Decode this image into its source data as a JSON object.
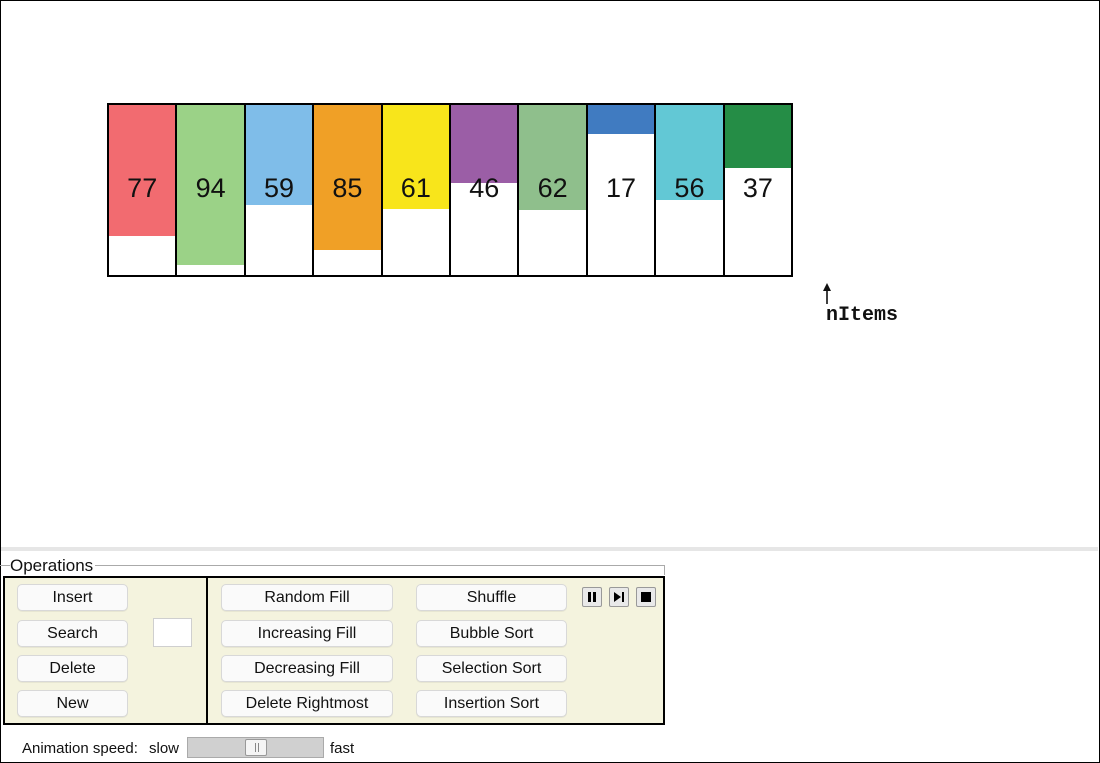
{
  "array": {
    "cells": [
      {
        "value": "77",
        "color": "#f26b70"
      },
      {
        "value": "94",
        "color": "#9bd287"
      },
      {
        "value": "59",
        "color": "#7fbde9"
      },
      {
        "value": "85",
        "color": "#f0a026"
      },
      {
        "value": "61",
        "color": "#f8e51b"
      },
      {
        "value": "46",
        "color": "#9b5ea6"
      },
      {
        "value": "62",
        "color": "#8fbf8c"
      },
      {
        "value": "17",
        "color": "#407bc1"
      },
      {
        "value": "56",
        "color": "#62c8d5"
      },
      {
        "value": "37",
        "color": "#258d46"
      }
    ],
    "pointer_label": "nItems"
  },
  "operations": {
    "legend": "Operations",
    "insert": "Insert",
    "search": "Search",
    "delete": "Delete",
    "new": "New",
    "random_fill": "Random Fill",
    "increasing_fill": "Increasing Fill",
    "decreasing_fill": "Decreasing Fill",
    "delete_rightmost": "Delete Rightmost",
    "shuffle": "Shuffle",
    "bubble_sort": "Bubble Sort",
    "selection_sort": "Selection Sort",
    "insertion_sort": "Insertion Sort",
    "value_input": "",
    "controls": [
      "pause-icon",
      "step-icon",
      "stop-icon"
    ]
  },
  "speed": {
    "label": "Animation speed:",
    "slow": "slow",
    "fast": "fast",
    "value_fraction": 0.5
  },
  "colors": {
    "panel_background": "#f4f3de"
  }
}
